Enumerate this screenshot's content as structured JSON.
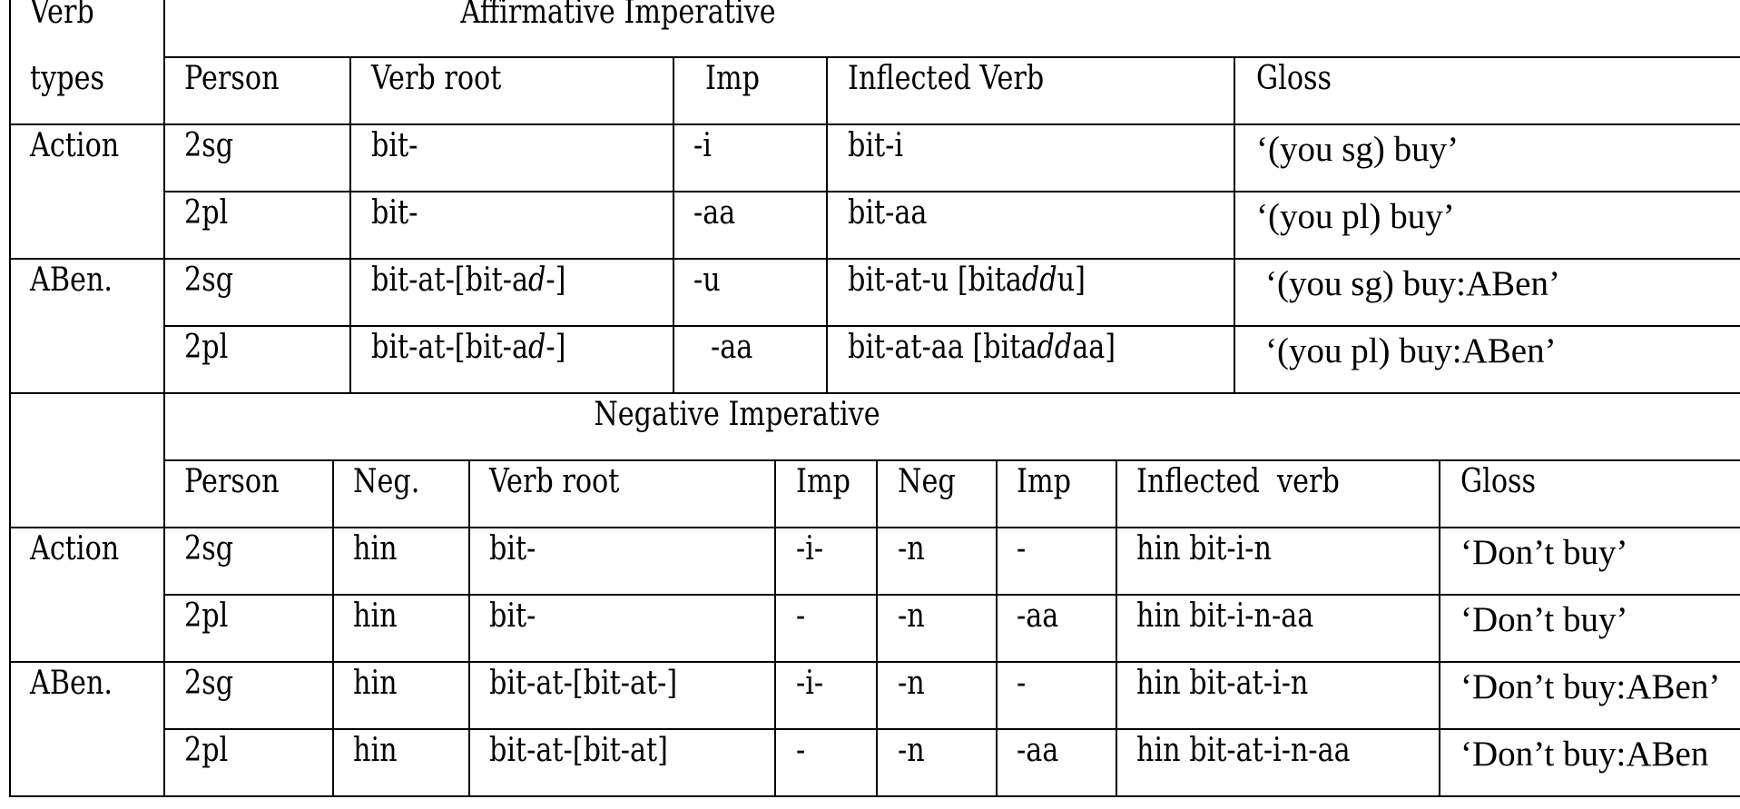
{
  "header": {
    "verb_types_line1": "Verb",
    "verb_types_line2": "types"
  },
  "affirmative": {
    "title": "Affirmative Imperative",
    "columns": [
      "Person",
      "Verb root",
      "Imp",
      "Inflected Verb",
      "Gloss"
    ],
    "groups": [
      {
        "verb_type": "Action",
        "rows": [
          {
            "person": "2sg",
            "root": "bit-",
            "imp": "-i",
            "inflected": "bit-i",
            "gloss": "‘(you sg) buy’"
          },
          {
            "person": "2pl",
            "root": "bit-",
            "imp": "-aa",
            "inflected": "bit-aa",
            "gloss": "‘(you pl) buy’"
          }
        ]
      },
      {
        "verb_type": "ABen.",
        "rows": [
          {
            "person": "2sg",
            "root_pre": "bit-at-[bit-a",
            "root_it": "d",
            "root_post": "-]",
            "imp": "-u",
            "infl_pre": "bit-at-u [bita",
            "infl_it": "dd",
            "infl_post": "u]",
            "gloss": "‘(you sg) buy:ABen’"
          },
          {
            "person": "2pl",
            "root_pre": "bit-at-[bit-a",
            "root_it": "d",
            "root_post": "-]",
            "imp": "-aa",
            "infl_pre": "bit-at-aa [bita",
            "infl_it": "dd",
            "infl_post": "aa]",
            "gloss": "‘(you pl) buy:ABen’"
          }
        ]
      }
    ]
  },
  "negative": {
    "title": "Negative Imperative",
    "columns": [
      "Person",
      "Neg.",
      "Verb root",
      "Imp",
      "Neg",
      "Imp",
      "Inflected  verb",
      "Gloss"
    ],
    "groups": [
      {
        "verb_type": "Action",
        "rows": [
          {
            "person": "2sg",
            "neg": "hin",
            "root": "bit-",
            "imp": "-i-",
            "neg2": "-n",
            "imp2": "-",
            "inflected": "hin bit-i-n",
            "gloss": "‘Don’t buy’"
          },
          {
            "person": "2pl",
            "neg": "hin",
            "root": "bit-",
            "imp": "-",
            "neg2": "-n",
            "imp2": "-aa",
            "inflected": "hin bit-i-n-aa",
            "gloss": "‘Don’t buy’"
          }
        ]
      },
      {
        "verb_type": "ABen.",
        "rows": [
          {
            "person": "2sg",
            "neg": "hin",
            "root": "bit-at-[bit-at-]",
            "imp": "-i-",
            "neg2": "-n",
            "imp2": "-",
            "inflected": "hin bit-at-i-n",
            "gloss": "‘Don’t buy:ABen’"
          },
          {
            "person": "2pl",
            "neg": "hin",
            "root": "bit-at-[bit-at]",
            "imp": "-",
            "neg2": "-n",
            "imp2": "-aa",
            "inflected": "hin bit-at-i-n-aa",
            "gloss": "‘Don’t buy:ABen"
          }
        ]
      }
    ]
  }
}
